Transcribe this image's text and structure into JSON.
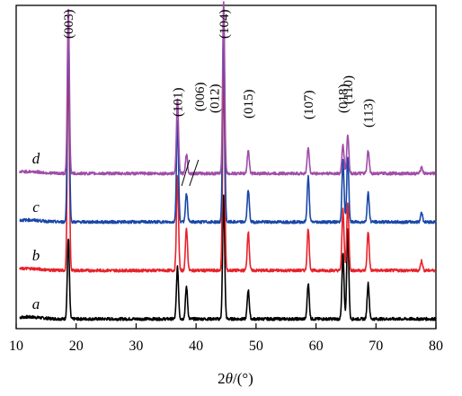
{
  "chart_data": {
    "type": "line",
    "xlabel_main": "2",
    "xlabel_symbol": "θ",
    "xlabel_unit": "/(°)",
    "ylabel": "",
    "xlim": [
      10,
      80
    ],
    "ylim": [
      0,
      100
    ],
    "x_ticks": [
      10,
      20,
      30,
      40,
      50,
      60,
      70,
      80
    ],
    "y_ticks_shown": false,
    "grid": false,
    "legend": "none",
    "series": [
      {
        "name": "a",
        "color": "#000000",
        "baseline": 3,
        "peaks": [
          [
            18.7,
            25
          ],
          [
            36.9,
            16
          ],
          [
            38.4,
            10
          ],
          [
            44.6,
            38
          ],
          [
            48.7,
            9
          ],
          [
            58.7,
            11
          ],
          [
            64.5,
            20
          ],
          [
            65.3,
            28
          ],
          [
            68.7,
            11
          ]
        ]
      },
      {
        "name": "b",
        "color": "#e8222a",
        "baseline": 18,
        "peaks": [
          [
            18.7,
            66
          ],
          [
            36.9,
            29
          ],
          [
            38.4,
            13
          ],
          [
            44.6,
            64
          ],
          [
            48.7,
            12
          ],
          [
            58.7,
            13
          ],
          [
            64.5,
            19
          ],
          [
            65.3,
            21
          ],
          [
            68.7,
            12
          ],
          [
            77.6,
            3
          ]
        ]
      },
      {
        "name": "c",
        "color": "#1a48a8",
        "baseline": 33,
        "peaks": [
          [
            18.7,
            63
          ],
          [
            36.9,
            31
          ],
          [
            38.4,
            9
          ],
          [
            44.6,
            63
          ],
          [
            48.7,
            10
          ],
          [
            58.7,
            14
          ],
          [
            64.5,
            19
          ],
          [
            65.3,
            20
          ],
          [
            68.7,
            9
          ],
          [
            77.6,
            3
          ]
        ]
      },
      {
        "name": "d",
        "color": "#a04ea8",
        "baseline": 48,
        "peaks": [
          [
            18.7,
            51
          ],
          [
            36.9,
            23
          ],
          [
            38.4,
            6
          ],
          [
            44.6,
            53
          ],
          [
            48.7,
            7
          ],
          [
            58.7,
            8
          ],
          [
            64.5,
            9
          ],
          [
            65.3,
            12
          ],
          [
            68.7,
            7
          ],
          [
            77.6,
            2
          ]
        ]
      }
    ],
    "annotations": [
      {
        "label": "(003)",
        "x": 18.7
      },
      {
        "label": "(101)",
        "x": 36.9
      },
      {
        "label": "(006)",
        "x": 38.2
      },
      {
        "label": "(012)",
        "x": 38.4
      },
      {
        "label": "(104)",
        "x": 44.6
      },
      {
        "label": "(015)",
        "x": 48.7
      },
      {
        "label": "(107)",
        "x": 58.7
      },
      {
        "label": "(018)",
        "x": 64.5
      },
      {
        "label": "(110)",
        "x": 65.3
      },
      {
        "label": "(113)",
        "x": 68.7
      }
    ]
  }
}
